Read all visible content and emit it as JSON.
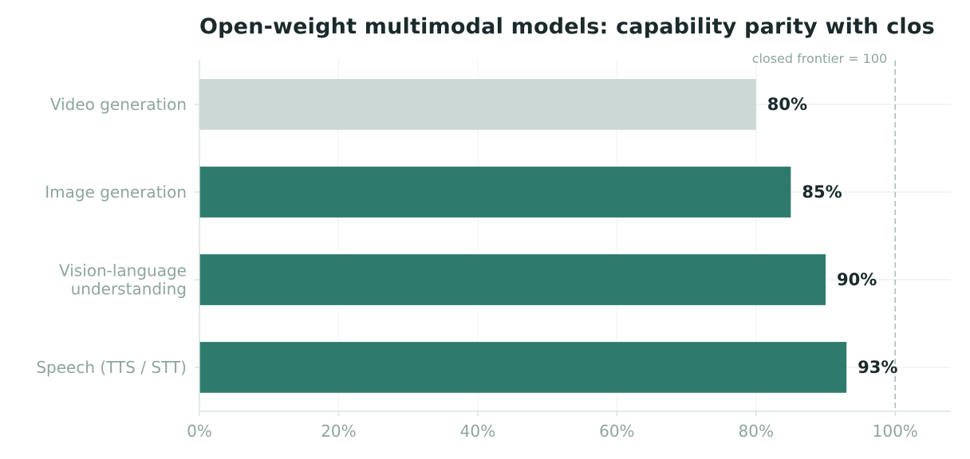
{
  "chart_data": {
    "type": "bar",
    "orientation": "horizontal",
    "title": "Open-weight multimodal models: capability parity with clos",
    "xlabel": "",
    "ylabel": "",
    "xlim": [
      0,
      108
    ],
    "x_ticks": [
      0,
      20,
      40,
      60,
      80,
      100
    ],
    "x_tick_labels": [
      "0%",
      "20%",
      "40%",
      "60%",
      "80%",
      "100%"
    ],
    "categories": [
      "Video generation",
      "Image generation",
      "Vision-language\nunderstanding",
      "Speech (TTS / STT)"
    ],
    "values": [
      80,
      85,
      90,
      93
    ],
    "value_labels": [
      "80%",
      "85%",
      "90%",
      "93%"
    ],
    "bar_colors": [
      "#cbd8d5",
      "#2e7b6e",
      "#2e7b6e",
      "#2e7b6e"
    ],
    "reference_line": {
      "value": 100,
      "label": "closed frontier = 100",
      "style": "dashed",
      "color": "#a9bfbb"
    },
    "grid": true,
    "colors": {
      "axis": "#d8e0de",
      "grid": "#eef2f1",
      "tick_text": "#8fa59f",
      "value_text": "#1b2a2c",
      "title": "#1b2a2c"
    }
  }
}
